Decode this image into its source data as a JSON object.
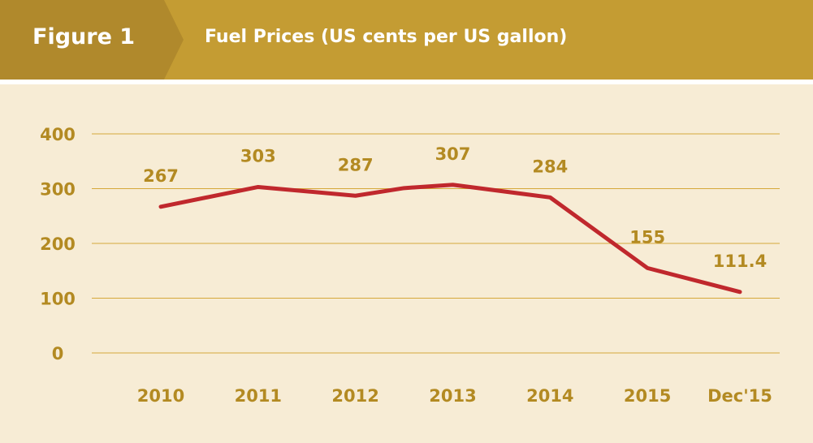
{
  "header": {
    "figure_label": "Figure 1",
    "title": "Fuel Prices (US cents per US gallon)"
  },
  "colors": {
    "header_dark": "#b0892c",
    "header_light": "#c49c33",
    "chart_bg": "#f7ecd5",
    "grid": "#d6a83a",
    "axis_text": "#b38a22",
    "line": "#c0282d"
  },
  "chart_data": {
    "type": "line",
    "title": "Fuel Prices (US cents per US gallon)",
    "categories": [
      "2010",
      "2011",
      "2012",
      "2013",
      "2014",
      "2015",
      "Dec'15"
    ],
    "series": [
      {
        "x": [
          2010,
          2011,
          2012,
          2012.5,
          2013,
          2014,
          2015,
          2015.95
        ],
        "values": [
          267,
          303,
          287,
          301,
          307,
          284,
          155,
          111.4
        ],
        "data_labels": [
          "267",
          "303",
          "287",
          null,
          "307",
          "284",
          "155",
          "111.4"
        ]
      }
    ],
    "yticks": [
      0,
      100,
      200,
      300,
      400
    ],
    "ylim": [
      0,
      400
    ],
    "grid": true,
    "legend": "none"
  }
}
